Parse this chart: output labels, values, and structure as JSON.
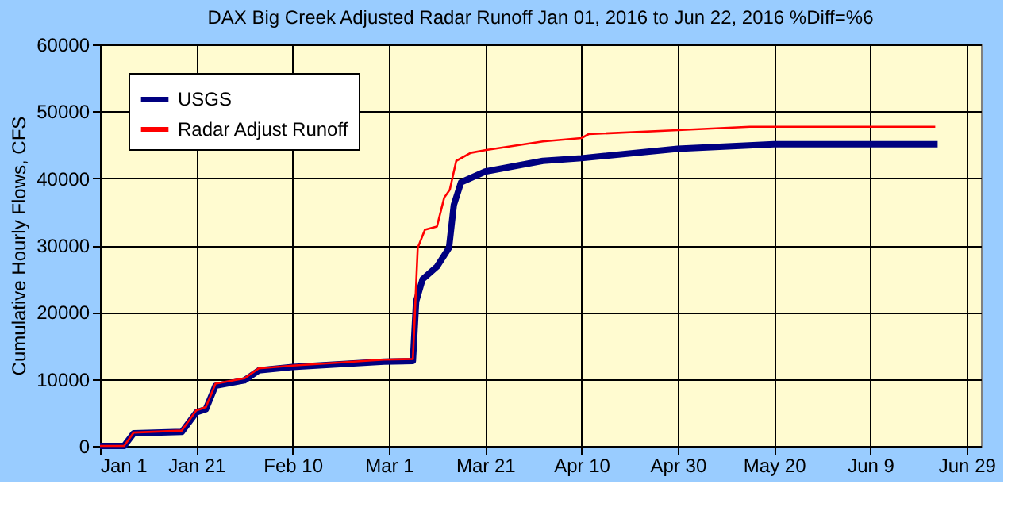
{
  "chart_data": {
    "type": "line",
    "title": "DAX Big Creek Adjusted Radar Runoff Jan 01, 2016 to Jun 22, 2016 %Diff=%6",
    "ylabel": "Cumulative Hourly Flows, CFS",
    "xlim": [
      "2016-01-01",
      "2016-07-02"
    ],
    "xticks": [
      {
        "value": "2016-01-01",
        "label": "Jan 1"
      },
      {
        "value": "2016-01-21",
        "label": "Jan 21"
      },
      {
        "value": "2016-02-10",
        "label": "Feb 10"
      },
      {
        "value": "2016-03-01",
        "label": "Mar 1"
      },
      {
        "value": "2016-03-21",
        "label": "Mar 21"
      },
      {
        "value": "2016-04-10",
        "label": "Apr 10"
      },
      {
        "value": "2016-04-30",
        "label": "Apr 30"
      },
      {
        "value": "2016-05-20",
        "label": "May 20"
      },
      {
        "value": "2016-06-09",
        "label": "Jun 9"
      },
      {
        "value": "2016-06-29",
        "label": "Jun 29"
      }
    ],
    "ylim": [
      0,
      60000
    ],
    "yticks": [
      0,
      10000,
      20000,
      30000,
      40000,
      50000,
      60000
    ],
    "grid": true,
    "legend": "top left",
    "line_style": "solid",
    "marker": "none",
    "series": [
      {
        "name": "USGS",
        "color": "#000080",
        "x": [
          "2016-01-01",
          "2016-01-06",
          "2016-01-08",
          "2016-01-18",
          "2016-01-21",
          "2016-01-23",
          "2016-01-25",
          "2016-01-31",
          "2016-02-03",
          "2016-02-10",
          "2016-02-29",
          "2016-03-06",
          "2016-03-06T16:00",
          "2016-03-08",
          "2016-03-11",
          "2016-03-13T12:00",
          "2016-03-14T12:00",
          "2016-03-16",
          "2016-03-21",
          "2016-04-02",
          "2016-04-10",
          "2016-04-30",
          "2016-05-20",
          "2016-06-23"
        ],
        "values": [
          0,
          0,
          1900,
          2100,
          5000,
          5500,
          9000,
          9800,
          11300,
          11800,
          12600,
          12700,
          21600,
          24900,
          26800,
          29600,
          36000,
          39400,
          41000,
          42600,
          43000,
          44400,
          45100,
          45100
        ]
      },
      {
        "name": "Radar Adjust Runoff",
        "color": "#ff0000",
        "x": [
          "2016-01-01",
          "2016-01-06",
          "2016-01-08",
          "2016-01-18",
          "2016-01-21",
          "2016-01-23",
          "2016-01-25",
          "2016-01-31",
          "2016-02-03",
          "2016-02-10",
          "2016-02-29",
          "2016-03-06",
          "2016-03-07",
          "2016-03-08T12:00",
          "2016-03-11",
          "2016-03-12T12:00",
          "2016-03-13T16:00",
          "2016-03-15",
          "2016-03-18",
          "2016-03-21",
          "2016-04-02",
          "2016-04-10",
          "2016-04-11T12:00",
          "2016-04-30",
          "2016-05-15",
          "2016-06-22T12:00"
        ],
        "values": [
          0,
          0,
          2000,
          2300,
          5300,
          5800,
          9300,
          10100,
          11600,
          12000,
          12900,
          13000,
          29600,
          32300,
          32800,
          37100,
          38300,
          42600,
          43800,
          44200,
          45500,
          46000,
          46600,
          47200,
          47700,
          47700
        ]
      }
    ]
  }
}
